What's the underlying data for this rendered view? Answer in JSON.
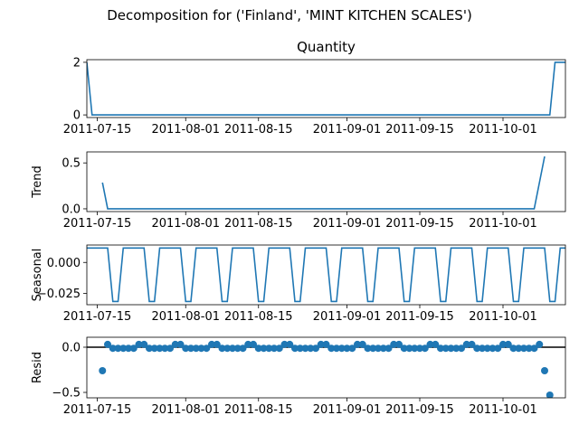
{
  "figure": {
    "suptitle": "Decomposition for ('Finland', 'MINT KITCHEN SCALES')"
  },
  "chart_data": [
    {
      "name": "observed",
      "type": "line",
      "title": "Quantity",
      "ylabel": "",
      "xlim": [
        "2011-07-13",
        "2011-10-13"
      ],
      "ylim": [
        -0.1,
        2.1
      ],
      "yticks": [
        0,
        2
      ],
      "ytick_labels": [
        "0",
        "2"
      ],
      "xticks": [
        "2011-07-15",
        "2011-08-01",
        "2011-08-15",
        "2011-09-01",
        "2011-09-15",
        "2011-10-01"
      ],
      "x": [
        "2011-07-13",
        "2011-07-14",
        "2011-10-10",
        "2011-10-11",
        "2011-10-13"
      ],
      "y": [
        2,
        0,
        0,
        2,
        2
      ],
      "color": "#1f77b4"
    },
    {
      "name": "trend",
      "type": "line",
      "title": "",
      "ylabel": "Trend",
      "xlim": [
        "2011-07-13",
        "2011-10-13"
      ],
      "ylim": [
        -0.03,
        0.62
      ],
      "yticks": [
        0,
        0.5
      ],
      "ytick_labels": [
        "0.0",
        "0.5"
      ],
      "xticks": [
        "2011-07-15",
        "2011-08-01",
        "2011-08-15",
        "2011-09-01",
        "2011-09-15",
        "2011-10-01"
      ],
      "x": [
        "2011-07-16",
        "2011-07-17",
        "2011-10-07",
        "2011-10-09"
      ],
      "y": [
        0.286,
        0,
        0,
        0.571
      ],
      "color": "#1f77b4"
    },
    {
      "name": "seasonal",
      "type": "line",
      "title": "",
      "ylabel": "Seasonal",
      "xlim": [
        "2011-07-13",
        "2011-10-13"
      ],
      "ylim": [
        -0.034,
        0.014
      ],
      "yticks": [
        0,
        -0.025
      ],
      "ytick_labels": [
        "0.000",
        "−0.025"
      ],
      "xticks": [
        "2011-07-15",
        "2011-08-01",
        "2011-08-15",
        "2011-09-01",
        "2011-09-15",
        "2011-10-01"
      ],
      "start": "2011-07-13",
      "weekly_pattern": [
        0.0116,
        0.0116,
        0.0116,
        0.0116,
        0.0116,
        -0.0314,
        -0.0314
      ],
      "color": "#1f77b4"
    },
    {
      "name": "resid",
      "type": "scatter",
      "title": "",
      "ylabel": "Resid",
      "xlim": [
        "2011-07-13",
        "2011-10-13"
      ],
      "ylim": [
        -0.56,
        0.11
      ],
      "yticks": [
        0,
        -0.5
      ],
      "ytick_labels": [
        "0.0",
        "−0.5"
      ],
      "xticks": [
        "2011-07-15",
        "2011-08-01",
        "2011-08-15",
        "2011-09-01",
        "2011-09-15",
        "2011-10-01"
      ],
      "hline": 0,
      "start": "2011-07-16",
      "end": "2011-10-09",
      "weekly_pattern": [
        0.031,
        0.031,
        -0.012,
        -0.012,
        -0.012,
        -0.012,
        -0.012
      ],
      "special": [
        {
          "x": "2011-07-16",
          "y": -0.26
        },
        {
          "x": "2011-10-09",
          "y": -0.26
        },
        {
          "x": "2011-10-10",
          "y": -0.53
        }
      ],
      "color": "#1f77b4"
    }
  ]
}
